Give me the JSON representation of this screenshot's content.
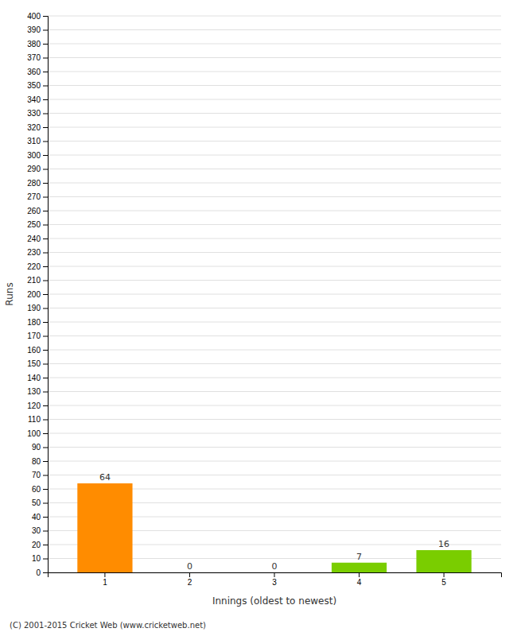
{
  "chart_data": {
    "type": "bar",
    "categories": [
      1,
      2,
      3,
      4,
      5
    ],
    "values": [
      64,
      0,
      0,
      7,
      16
    ],
    "colors": [
      "#ff8c00",
      "#90ee90",
      "#90ee90",
      "#7acd00",
      "#7acd00"
    ],
    "xlabel": "Innings (oldest to newest)",
    "ylabel": "Runs",
    "ylim": [
      0,
      400
    ],
    "yticks": [
      0,
      10,
      20,
      30,
      40,
      50,
      60,
      70,
      80,
      90,
      100,
      110,
      120,
      130,
      140,
      150,
      160,
      170,
      180,
      190,
      200,
      210,
      220,
      230,
      240,
      250,
      260,
      270,
      280,
      290,
      300,
      310,
      320,
      330,
      340,
      350,
      360,
      370,
      380,
      390,
      400
    ],
    "grid": true,
    "data_labels": true,
    "annotations": [
      "(C) 2001-2015 Cricket Web (www.cricketweb.net)"
    ]
  }
}
